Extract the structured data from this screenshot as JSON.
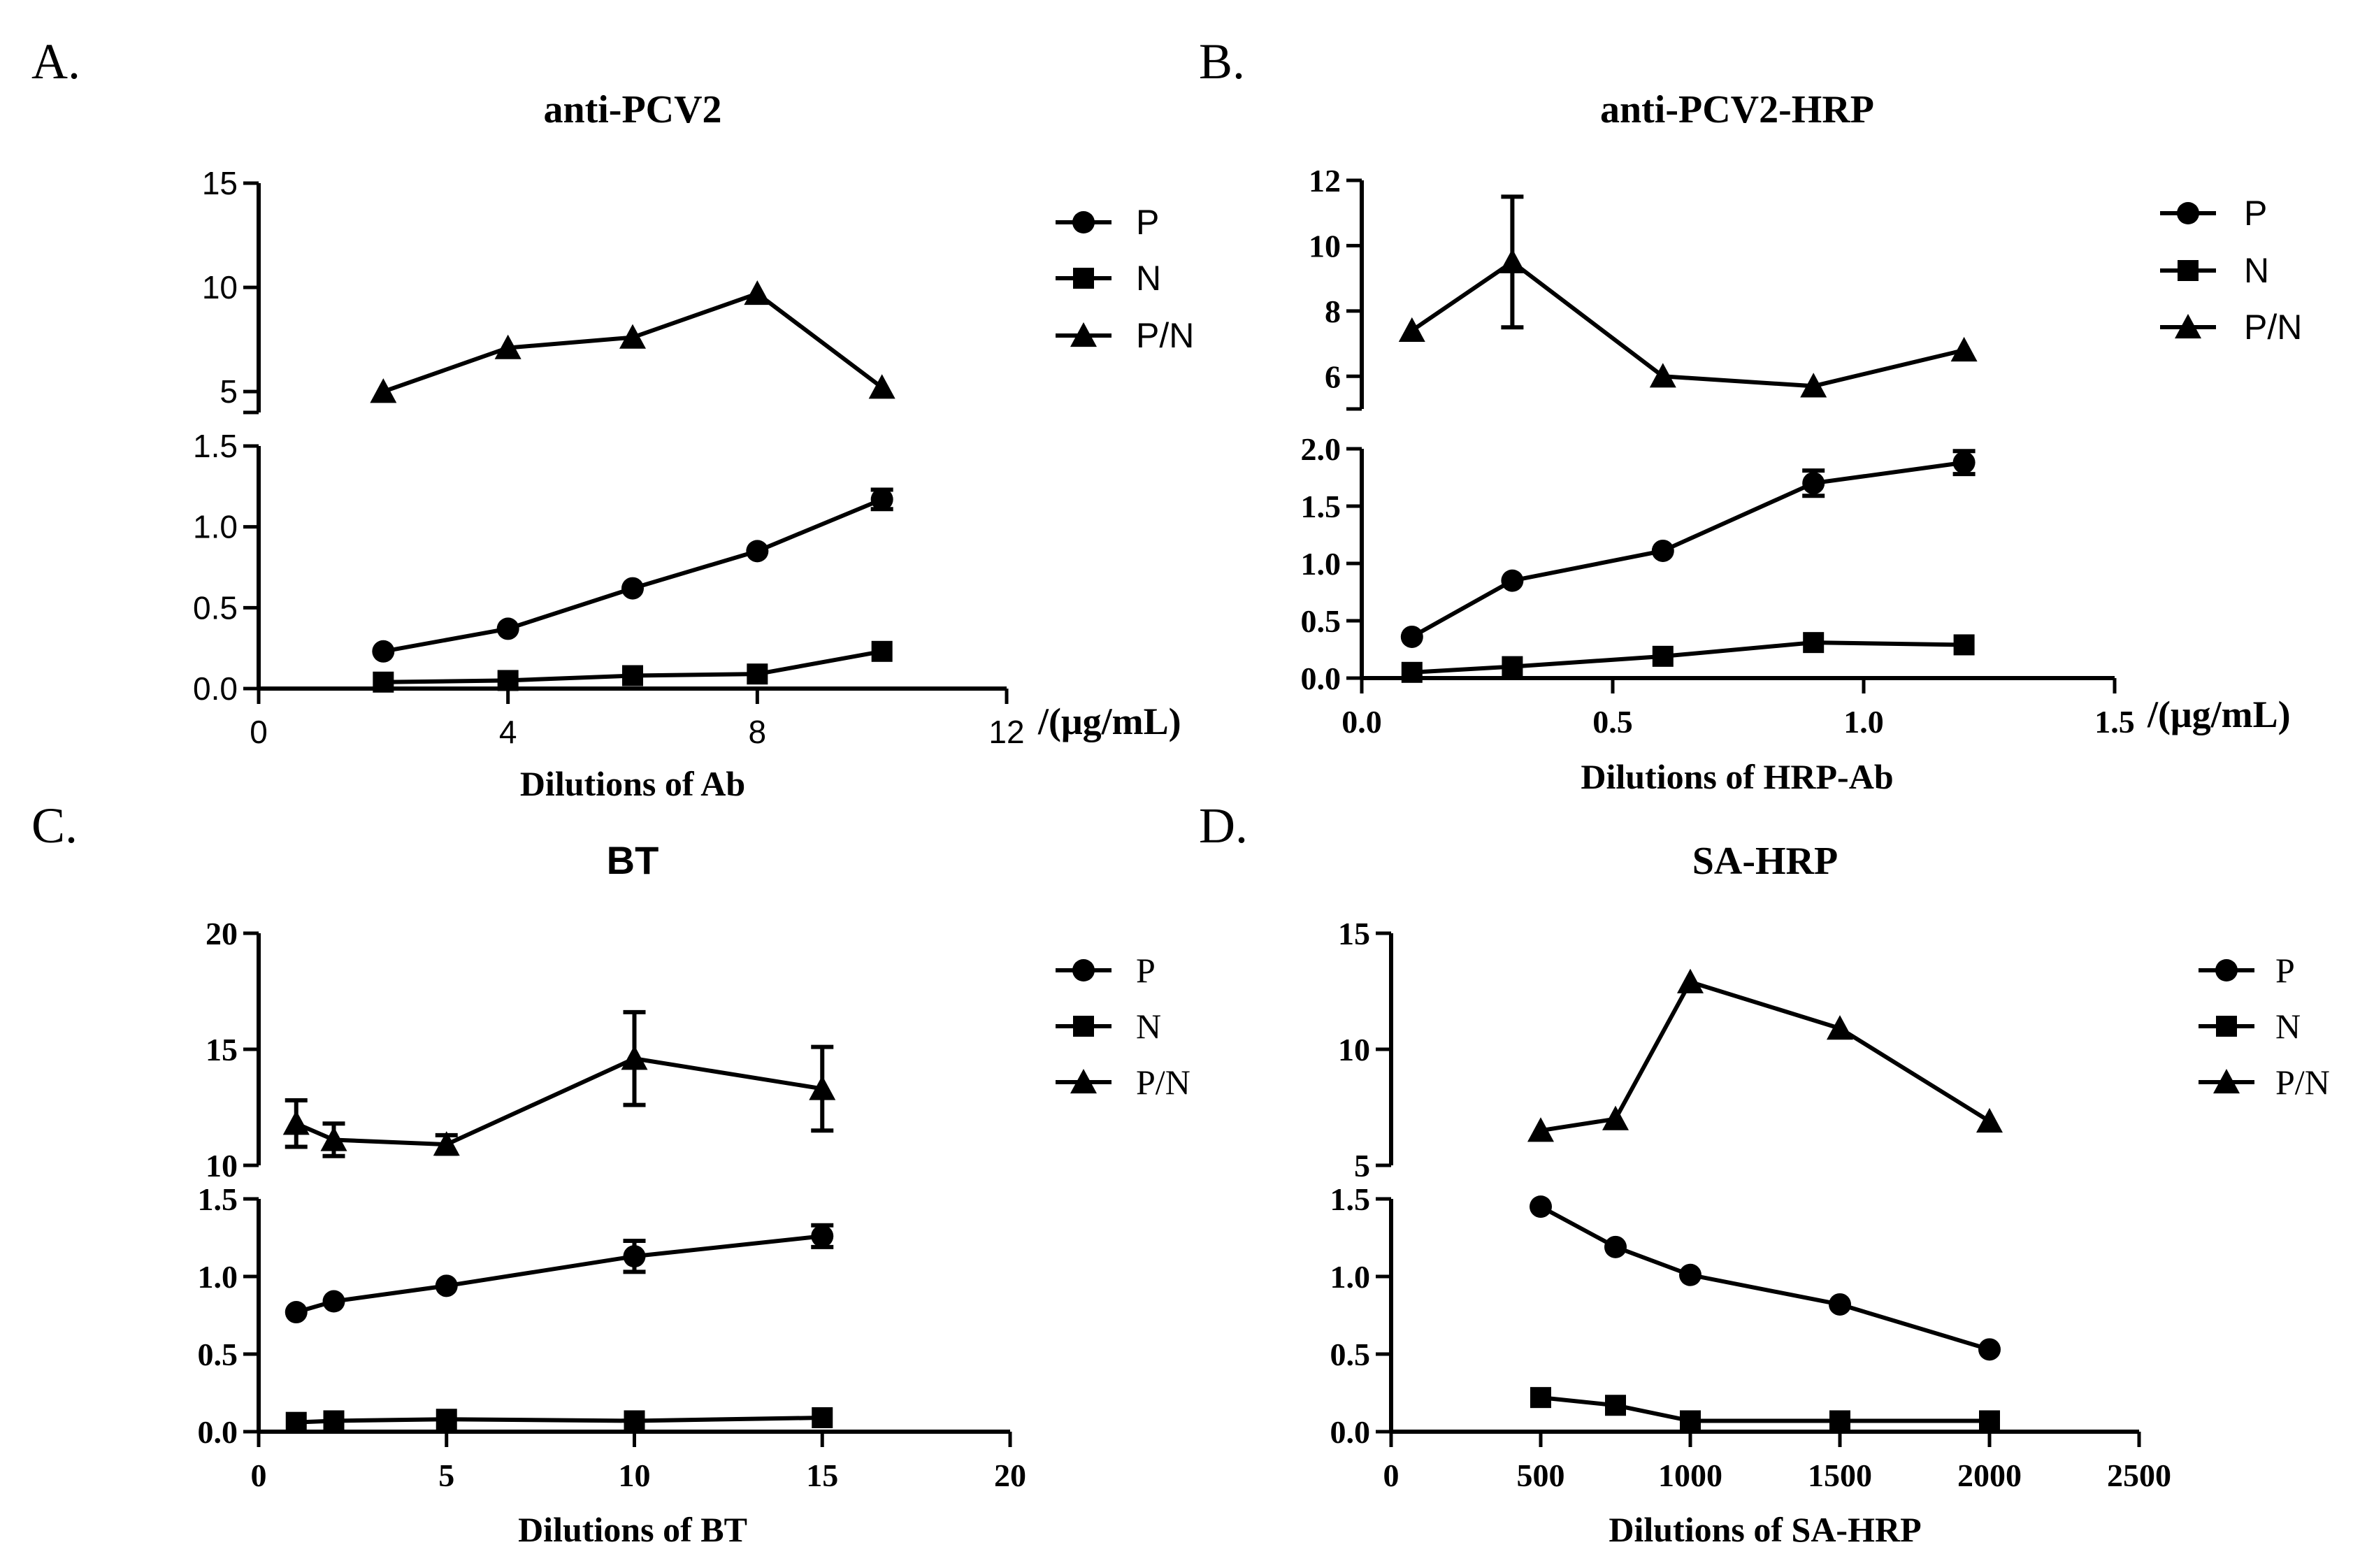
{
  "chart_data": [
    {
      "type": "line",
      "panel": "A.",
      "title": "anti-PCV2",
      "xlabel": "Dilutions of Ab",
      "unit_label": "/(μg/mL)",
      "x_ticks": [
        "0",
        "4",
        "8",
        "12"
      ],
      "upper_y_ticks": [
        "5",
        "10",
        "15"
      ],
      "lower_y_ticks": [
        "0.0",
        "0.5",
        "1.0",
        "1.5"
      ],
      "xlim": [
        0,
        12
      ],
      "upper_ylim": [
        4,
        15
      ],
      "lower_ylim": [
        0,
        1.5
      ],
      "x": [
        2,
        4,
        6,
        8,
        10
      ],
      "series": [
        {
          "name": "P",
          "marker": "circle",
          "values": [
            0.23,
            0.37,
            0.62,
            0.85,
            1.17
          ],
          "errors": [
            0,
            0,
            0,
            0,
            0.06
          ]
        },
        {
          "name": "N",
          "marker": "square",
          "values": [
            0.04,
            0.05,
            0.08,
            0.09,
            0.23
          ],
          "errors": [
            0,
            0,
            0,
            0,
            0
          ]
        },
        {
          "name": "P/N",
          "marker": "triangle",
          "values": [
            5.0,
            7.1,
            7.6,
            9.7,
            5.2
          ],
          "errors": [
            0,
            0,
            0,
            0,
            0
          ]
        }
      ]
    },
    {
      "type": "line",
      "panel": "B.",
      "title": "anti-PCV2-HRP",
      "xlabel": "Dilutions of HRP-Ab",
      "unit_label": "/(μg/mL)",
      "x_ticks": [
        "0.0",
        "0.5",
        "1.0",
        "1.5"
      ],
      "upper_y_ticks": [
        "6",
        "8",
        "10",
        "12"
      ],
      "lower_y_ticks": [
        "0.0",
        "0.5",
        "1.0",
        "1.5",
        "2.0"
      ],
      "xlim": [
        0,
        1.5
      ],
      "upper_ylim": [
        5,
        12
      ],
      "lower_ylim": [
        0,
        2
      ],
      "x": [
        0.1,
        0.3,
        0.6,
        0.9,
        1.2
      ],
      "series": [
        {
          "name": "P",
          "marker": "circle",
          "values": [
            0.36,
            0.85,
            1.11,
            1.7,
            1.88
          ],
          "errors": [
            0,
            0,
            0,
            0.11,
            0.1
          ]
        },
        {
          "name": "N",
          "marker": "square",
          "values": [
            0.05,
            0.1,
            0.19,
            0.31,
            0.29
          ],
          "errors": [
            0,
            0,
            0,
            0,
            0
          ]
        },
        {
          "name": "P/N",
          "marker": "triangle",
          "values": [
            7.4,
            9.5,
            6.0,
            5.7,
            6.8
          ],
          "errors": [
            0,
            2.0,
            0,
            0,
            0
          ]
        }
      ]
    },
    {
      "type": "line",
      "panel": "C.",
      "title": "BT",
      "xlabel": "Dilutions of BT",
      "unit_label": "",
      "x_ticks": [
        "0",
        "5",
        "10",
        "15",
        "20"
      ],
      "upper_y_ticks": [
        "10",
        "15",
        "20"
      ],
      "lower_y_ticks": [
        "0.0",
        "0.5",
        "1.0",
        "1.5"
      ],
      "xlim": [
        0,
        20
      ],
      "upper_ylim": [
        10,
        20
      ],
      "lower_ylim": [
        0,
        1.5
      ],
      "x": [
        1,
        2,
        5,
        10,
        15
      ],
      "series": [
        {
          "name": "P",
          "marker": "circle",
          "values": [
            0.77,
            0.84,
            0.94,
            1.13,
            1.26
          ],
          "errors": [
            0,
            0,
            0,
            0.1,
            0.07
          ]
        },
        {
          "name": "N",
          "marker": "square",
          "values": [
            0.06,
            0.07,
            0.08,
            0.07,
            0.09
          ],
          "errors": [
            0,
            0,
            0,
            0,
            0
          ]
        },
        {
          "name": "P/N",
          "marker": "triangle",
          "values": [
            11.8,
            11.1,
            10.9,
            14.6,
            13.3
          ],
          "errors": [
            1.0,
            0.7,
            0.4,
            2.0,
            1.8
          ]
        }
      ]
    },
    {
      "type": "line",
      "panel": "D.",
      "title": "SA-HRP",
      "xlabel": "Dilutions of SA-HRP",
      "unit_label": "",
      "x_ticks": [
        "0",
        "500",
        "1000",
        "1500",
        "2000",
        "2500"
      ],
      "upper_y_ticks": [
        "5",
        "10",
        "15"
      ],
      "lower_y_ticks": [
        "0.0",
        "0.5",
        "1.0",
        "1.5"
      ],
      "xlim": [
        0,
        2500
      ],
      "upper_ylim": [
        5,
        15
      ],
      "lower_ylim": [
        0,
        1.5
      ],
      "x": [
        500,
        750,
        1000,
        1500,
        2000
      ],
      "series": [
        {
          "name": "P",
          "marker": "circle",
          "values": [
            1.45,
            1.19,
            1.01,
            0.82,
            0.53
          ],
          "errors": [
            0,
            0,
            0,
            0,
            0
          ]
        },
        {
          "name": "N",
          "marker": "square",
          "values": [
            0.22,
            0.17,
            0.07,
            0.07,
            0.07
          ],
          "errors": [
            0,
            0,
            0,
            0,
            0
          ]
        },
        {
          "name": "P/N",
          "marker": "triangle",
          "values": [
            6.5,
            7.0,
            12.9,
            10.9,
            6.9
          ],
          "errors": [
            0,
            0,
            0,
            0,
            0
          ]
        }
      ]
    }
  ]
}
